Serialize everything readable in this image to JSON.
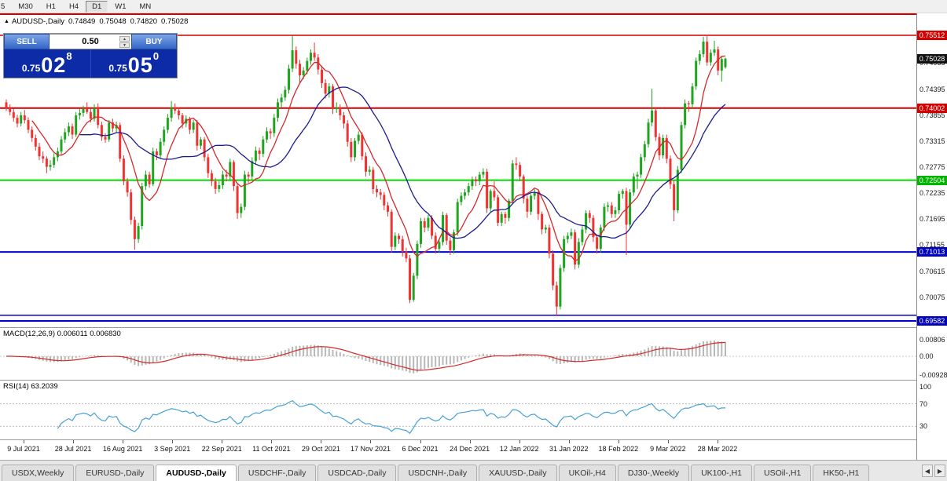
{
  "toolbar": {
    "timeframes": [
      {
        "label": "5",
        "active": false
      },
      {
        "label": "M30",
        "active": false
      },
      {
        "label": "H1",
        "active": false
      },
      {
        "label": "H4",
        "active": false
      },
      {
        "label": "D1",
        "active": true
      },
      {
        "label": "W1",
        "active": false
      },
      {
        "label": "MN",
        "active": false
      }
    ]
  },
  "chart_header": {
    "symbol": "AUDUSD-,Daily",
    "open": "0.74849",
    "high": "0.75048",
    "low": "0.74820",
    "close": "0.75028"
  },
  "trade_panel": {
    "sell_label": "SELL",
    "buy_label": "BUY",
    "volume": "0.50",
    "sell_price_small": "0.75",
    "sell_price_big": "02",
    "sell_price_sup": "8",
    "buy_price_small": "0.75",
    "buy_price_big": "05",
    "buy_price_sup": "0"
  },
  "chart_data": {
    "type": "candlestick",
    "symbol": "AUDUSD-,Daily",
    "up_color": "#1fa51f",
    "down_color": "#ef3434",
    "overlays": [
      {
        "name": "ma-fast",
        "period": 8,
        "color": "#d42a2a"
      },
      {
        "name": "ma-slow",
        "period": 21,
        "color": "#1c1c8f"
      }
    ],
    "hlines": [
      {
        "price": 0.75512,
        "color": "#d40000",
        "width": 1.5
      },
      {
        "price": 0.74002,
        "color": "#d40000",
        "width": 2
      },
      {
        "price": 0.72504,
        "color": "#00d800",
        "width": 2
      },
      {
        "price": 0.71013,
        "color": "#0000d0",
        "width": 2
      },
      {
        "price": 0.697,
        "color": "#0000d0",
        "width": 1.5
      },
      {
        "price": 0.69582,
        "color": "#0000d0",
        "width": 2
      }
    ],
    "price_axis": {
      "grid_labels": [
        "0.74935",
        "0.74395",
        "0.73855",
        "0.73315",
        "0.72775",
        "0.72235",
        "0.71695",
        "0.71155",
        "0.70615",
        "0.70075"
      ],
      "badges": [
        {
          "value": "0.75512",
          "color": "#d40000"
        },
        {
          "value": "0.75028",
          "color": "#111111"
        },
        {
          "value": "0.74002",
          "color": "#d40000"
        },
        {
          "value": "0.72504",
          "color": "#00b400"
        },
        {
          "value": "0.71013",
          "color": "#0000c0"
        },
        {
          "value": "0.69582",
          "color": "#0000c0"
        }
      ]
    },
    "date_labels": [
      "9 Jul 2021",
      "28 Jul 2021",
      "16 Aug 2021",
      "3 Sep 2021",
      "22 Sep 2021",
      "11 Oct 2021",
      "29 Oct 2021",
      "17 Nov 2021",
      "6 Dec 2021",
      "24 Dec 2021",
      "12 Jan 2022",
      "31 Jan 2022",
      "18 Feb 2022",
      "9 Mar 2022",
      "28 Mar 2022"
    ],
    "candles": [
      [
        0.7412,
        0.7418,
        0.7394,
        0.74
      ],
      [
        0.74,
        0.7408,
        0.7385,
        0.7392
      ],
      [
        0.7392,
        0.7399,
        0.7372,
        0.738
      ],
      [
        0.738,
        0.7386,
        0.736,
        0.7368
      ],
      [
        0.7368,
        0.7392,
        0.7362,
        0.7385
      ],
      [
        0.7385,
        0.7396,
        0.7368,
        0.7375
      ],
      [
        0.7375,
        0.7381,
        0.7348,
        0.7355
      ],
      [
        0.7355,
        0.7362,
        0.733,
        0.7338
      ],
      [
        0.7338,
        0.7345,
        0.7312,
        0.732
      ],
      [
        0.732,
        0.7328,
        0.7292,
        0.73
      ],
      [
        0.73,
        0.731,
        0.7286,
        0.7295
      ],
      [
        0.7295,
        0.73,
        0.7265,
        0.7278
      ],
      [
        0.7278,
        0.7292,
        0.727,
        0.7282
      ],
      [
        0.7282,
        0.7306,
        0.7276,
        0.7298
      ],
      [
        0.7298,
        0.7318,
        0.729,
        0.731
      ],
      [
        0.731,
        0.7342,
        0.7302,
        0.7335
      ],
      [
        0.7335,
        0.7358,
        0.7328,
        0.735
      ],
      [
        0.735,
        0.737,
        0.7342,
        0.7362
      ],
      [
        0.7362,
        0.7368,
        0.7336,
        0.7345
      ],
      [
        0.7345,
        0.7392,
        0.734,
        0.7385
      ],
      [
        0.7385,
        0.7398,
        0.7376,
        0.739
      ],
      [
        0.739,
        0.7405,
        0.7382,
        0.7398
      ],
      [
        0.7398,
        0.7412,
        0.7388,
        0.7392
      ],
      [
        0.7392,
        0.74,
        0.737,
        0.7378
      ],
      [
        0.7378,
        0.7408,
        0.7372,
        0.74
      ],
      [
        0.74,
        0.741,
        0.7358,
        0.7365
      ],
      [
        0.7365,
        0.7372,
        0.7332,
        0.734
      ],
      [
        0.734,
        0.7348,
        0.7328,
        0.7335
      ],
      [
        0.7335,
        0.7375,
        0.733,
        0.737
      ],
      [
        0.737,
        0.7378,
        0.735,
        0.7358
      ],
      [
        0.7358,
        0.7372,
        0.735,
        0.7365
      ],
      [
        0.7365,
        0.737,
        0.7288,
        0.7295
      ],
      [
        0.7295,
        0.7302,
        0.724,
        0.7248
      ],
      [
        0.7248,
        0.7255,
        0.7216,
        0.7225
      ],
      [
        0.7225,
        0.7232,
        0.7158,
        0.7168
      ],
      [
        0.7168,
        0.7175,
        0.7106,
        0.7128
      ],
      [
        0.7128,
        0.7162,
        0.712,
        0.7155
      ],
      [
        0.7155,
        0.7245,
        0.7148,
        0.7238
      ],
      [
        0.7238,
        0.727,
        0.723,
        0.7262
      ],
      [
        0.7262,
        0.7268,
        0.7235,
        0.7242
      ],
      [
        0.7242,
        0.7318,
        0.7238,
        0.731
      ],
      [
        0.731,
        0.7316,
        0.7292,
        0.7302
      ],
      [
        0.7302,
        0.7338,
        0.7296,
        0.733
      ],
      [
        0.733,
        0.7362,
        0.7322,
        0.7355
      ],
      [
        0.7355,
        0.7388,
        0.7348,
        0.738
      ],
      [
        0.738,
        0.7415,
        0.7372,
        0.7402
      ],
      [
        0.7402,
        0.741,
        0.7388,
        0.7395
      ],
      [
        0.7395,
        0.7402,
        0.7376,
        0.7385
      ],
      [
        0.7385,
        0.739,
        0.7358,
        0.7368
      ],
      [
        0.7368,
        0.7385,
        0.736,
        0.7378
      ],
      [
        0.7378,
        0.7382,
        0.7346,
        0.7355
      ],
      [
        0.7355,
        0.7376,
        0.7348,
        0.737
      ],
      [
        0.737,
        0.7375,
        0.7312,
        0.7322
      ],
      [
        0.7322,
        0.734,
        0.7315,
        0.7335
      ],
      [
        0.7335,
        0.734,
        0.729,
        0.7298
      ],
      [
        0.7298,
        0.7305,
        0.7255,
        0.7265
      ],
      [
        0.7265,
        0.7272,
        0.7238,
        0.7248
      ],
      [
        0.7248,
        0.7255,
        0.7222,
        0.7232
      ],
      [
        0.7232,
        0.7248,
        0.7225,
        0.724
      ],
      [
        0.724,
        0.727,
        0.7232,
        0.7262
      ],
      [
        0.7262,
        0.7272,
        0.7248,
        0.7258
      ],
      [
        0.7258,
        0.7295,
        0.725,
        0.7288
      ],
      [
        0.7288,
        0.7292,
        0.7228,
        0.7238
      ],
      [
        0.7238,
        0.7245,
        0.717,
        0.7182
      ],
      [
        0.7182,
        0.7202,
        0.7172,
        0.7195
      ],
      [
        0.7195,
        0.727,
        0.7188,
        0.7262
      ],
      [
        0.7262,
        0.7268,
        0.7245,
        0.7258
      ],
      [
        0.7258,
        0.7298,
        0.725,
        0.729
      ],
      [
        0.729,
        0.732,
        0.7282,
        0.7312
      ],
      [
        0.7312,
        0.7318,
        0.7292,
        0.7305
      ],
      [
        0.7305,
        0.7342,
        0.7298,
        0.7335
      ],
      [
        0.7335,
        0.736,
        0.7328,
        0.7352
      ],
      [
        0.7352,
        0.7358,
        0.7336,
        0.7348
      ],
      [
        0.7348,
        0.7388,
        0.734,
        0.738
      ],
      [
        0.738,
        0.742,
        0.7372,
        0.7412
      ],
      [
        0.7412,
        0.743,
        0.7402,
        0.7422
      ],
      [
        0.7422,
        0.7446,
        0.7415,
        0.7438
      ],
      [
        0.7438,
        0.749,
        0.743,
        0.7482
      ],
      [
        0.7482,
        0.755,
        0.7475,
        0.752
      ],
      [
        0.752,
        0.7528,
        0.7482,
        0.7492
      ],
      [
        0.7492,
        0.75,
        0.7452,
        0.7468
      ],
      [
        0.7468,
        0.7485,
        0.746,
        0.7478
      ],
      [
        0.7478,
        0.7505,
        0.747,
        0.7498
      ],
      [
        0.7498,
        0.7522,
        0.749,
        0.7515
      ],
      [
        0.7515,
        0.7536,
        0.7498,
        0.7505
      ],
      [
        0.7505,
        0.7512,
        0.747,
        0.748
      ],
      [
        0.748,
        0.7488,
        0.7442,
        0.7452
      ],
      [
        0.7452,
        0.746,
        0.742,
        0.743
      ],
      [
        0.743,
        0.7452,
        0.7422,
        0.7445
      ],
      [
        0.7445,
        0.745,
        0.7388,
        0.7398
      ],
      [
        0.7398,
        0.7412,
        0.739,
        0.7402
      ],
      [
        0.7402,
        0.7408,
        0.7375,
        0.7385
      ],
      [
        0.7385,
        0.7392,
        0.7358,
        0.7368
      ],
      [
        0.7368,
        0.7375,
        0.732,
        0.733
      ],
      [
        0.733,
        0.7338,
        0.7288,
        0.7298
      ],
      [
        0.7298,
        0.7338,
        0.729,
        0.7332
      ],
      [
        0.7332,
        0.7352,
        0.7325,
        0.7345
      ],
      [
        0.7345,
        0.735,
        0.7292,
        0.73
      ],
      [
        0.73,
        0.7308,
        0.7258,
        0.7268
      ],
      [
        0.7268,
        0.728,
        0.726,
        0.7272
      ],
      [
        0.7272,
        0.7278,
        0.7222,
        0.7232
      ],
      [
        0.7232,
        0.724,
        0.7215,
        0.7225
      ],
      [
        0.7225,
        0.7232,
        0.721,
        0.722
      ],
      [
        0.722,
        0.7226,
        0.7188,
        0.7198
      ],
      [
        0.7198,
        0.7205,
        0.7175,
        0.7185
      ],
      [
        0.7185,
        0.719,
        0.71,
        0.7112
      ],
      [
        0.7112,
        0.7142,
        0.7105,
        0.7135
      ],
      [
        0.7135,
        0.714,
        0.7118,
        0.7128
      ],
      [
        0.7128,
        0.7135,
        0.7092,
        0.7102
      ],
      [
        0.7102,
        0.711,
        0.708,
        0.7088
      ],
      [
        0.7088,
        0.7095,
        0.6995,
        0.7002
      ],
      [
        0.7002,
        0.7058,
        0.6998,
        0.7052
      ],
      [
        0.7052,
        0.7125,
        0.7045,
        0.7118
      ],
      [
        0.7118,
        0.7172,
        0.711,
        0.7165
      ],
      [
        0.7165,
        0.7172,
        0.7142,
        0.7152
      ],
      [
        0.7152,
        0.7178,
        0.7145,
        0.7172
      ],
      [
        0.7172,
        0.7178,
        0.7128,
        0.7135
      ],
      [
        0.7135,
        0.7142,
        0.7098,
        0.7108
      ],
      [
        0.7108,
        0.7128,
        0.71,
        0.7122
      ],
      [
        0.7122,
        0.7185,
        0.7115,
        0.7178
      ],
      [
        0.7178,
        0.7182,
        0.7116,
        0.7125
      ],
      [
        0.7125,
        0.7132,
        0.7095,
        0.7105
      ],
      [
        0.7105,
        0.7148,
        0.7098,
        0.7142
      ],
      [
        0.7142,
        0.7212,
        0.7135,
        0.7205
      ],
      [
        0.7205,
        0.7225,
        0.7198,
        0.7218
      ],
      [
        0.7218,
        0.7232,
        0.721,
        0.7225
      ],
      [
        0.7225,
        0.7245,
        0.7218,
        0.7238
      ],
      [
        0.7238,
        0.7258,
        0.723,
        0.7252
      ],
      [
        0.7252,
        0.7258,
        0.7238,
        0.7248
      ],
      [
        0.7248,
        0.7268,
        0.724,
        0.7262
      ],
      [
        0.7262,
        0.7275,
        0.7255,
        0.7268
      ],
      [
        0.7268,
        0.7274,
        0.7182,
        0.7192
      ],
      [
        0.7192,
        0.7232,
        0.7185,
        0.7228
      ],
      [
        0.7228,
        0.7248,
        0.7208,
        0.7215
      ],
      [
        0.7215,
        0.722,
        0.7155,
        0.7162
      ],
      [
        0.7162,
        0.7185,
        0.7155,
        0.718
      ],
      [
        0.718,
        0.7185,
        0.716,
        0.7172
      ],
      [
        0.7172,
        0.7212,
        0.7165,
        0.7208
      ],
      [
        0.7208,
        0.7292,
        0.72,
        0.7285
      ],
      [
        0.7285,
        0.7298,
        0.7272,
        0.7282
      ],
      [
        0.7282,
        0.7288,
        0.7248,
        0.7258
      ],
      [
        0.7258,
        0.7262,
        0.7202,
        0.7212
      ],
      [
        0.7212,
        0.7218,
        0.7172,
        0.7185
      ],
      [
        0.7185,
        0.7222,
        0.7178,
        0.7218
      ],
      [
        0.7218,
        0.7232,
        0.721,
        0.7225
      ],
      [
        0.7225,
        0.723,
        0.7168,
        0.718
      ],
      [
        0.718,
        0.7185,
        0.7138,
        0.7148
      ],
      [
        0.7148,
        0.7158,
        0.714,
        0.7152
      ],
      [
        0.7152,
        0.7158,
        0.7088,
        0.7098
      ],
      [
        0.7098,
        0.7105,
        0.7022,
        0.7032
      ],
      [
        0.7032,
        0.704,
        0.6968,
        0.6988
      ],
      [
        0.6988,
        0.7075,
        0.6982,
        0.7068
      ],
      [
        0.7068,
        0.7135,
        0.706,
        0.7128
      ],
      [
        0.7128,
        0.7142,
        0.712,
        0.7135
      ],
      [
        0.7135,
        0.715,
        0.7128,
        0.7142
      ],
      [
        0.7142,
        0.7148,
        0.7065,
        0.7075
      ],
      [
        0.7075,
        0.713,
        0.7068,
        0.7122
      ],
      [
        0.7122,
        0.7155,
        0.7115,
        0.7148
      ],
      [
        0.7148,
        0.7188,
        0.714,
        0.7182
      ],
      [
        0.7182,
        0.7188,
        0.7162,
        0.7172
      ],
      [
        0.7172,
        0.7178,
        0.7122,
        0.7132
      ],
      [
        0.7132,
        0.7138,
        0.7098,
        0.7108
      ],
      [
        0.7108,
        0.7158,
        0.71,
        0.7152
      ],
      [
        0.7152,
        0.7202,
        0.7145,
        0.7195
      ],
      [
        0.7195,
        0.7205,
        0.7185,
        0.7198
      ],
      [
        0.7198,
        0.7205,
        0.7172,
        0.718
      ],
      [
        0.718,
        0.7195,
        0.7172,
        0.7188
      ],
      [
        0.7188,
        0.7228,
        0.718,
        0.7222
      ],
      [
        0.7222,
        0.7232,
        0.7212,
        0.7228
      ],
      [
        0.7228,
        0.7235,
        0.7095,
        0.7158
      ],
      [
        0.7158,
        0.7232,
        0.715,
        0.7225
      ],
      [
        0.7225,
        0.7265,
        0.7218,
        0.7258
      ],
      [
        0.7258,
        0.7268,
        0.7232,
        0.7262
      ],
      [
        0.7262,
        0.7305,
        0.7255,
        0.7298
      ],
      [
        0.7298,
        0.7332,
        0.729,
        0.7325
      ],
      [
        0.7325,
        0.7378,
        0.7318,
        0.737
      ],
      [
        0.737,
        0.744,
        0.7362,
        0.7395
      ],
      [
        0.7395,
        0.7402,
        0.7332,
        0.734
      ],
      [
        0.734,
        0.7348,
        0.7292,
        0.7302
      ],
      [
        0.7302,
        0.7345,
        0.7295,
        0.7338
      ],
      [
        0.7338,
        0.7345,
        0.7285,
        0.7295
      ],
      [
        0.7295,
        0.7302,
        0.7232,
        0.7242
      ],
      [
        0.7242,
        0.725,
        0.7165,
        0.7188
      ],
      [
        0.7188,
        0.728,
        0.7182,
        0.7272
      ],
      [
        0.7272,
        0.7372,
        0.7265,
        0.7365
      ],
      [
        0.7365,
        0.7418,
        0.7358,
        0.741
      ],
      [
        0.741,
        0.7415,
        0.7392,
        0.7408
      ],
      [
        0.7408,
        0.7452,
        0.74,
        0.7445
      ],
      [
        0.7445,
        0.7505,
        0.7438,
        0.7498
      ],
      [
        0.7498,
        0.752,
        0.749,
        0.7512
      ],
      [
        0.7512,
        0.7548,
        0.7505,
        0.7538
      ],
      [
        0.7538,
        0.7552,
        0.7488,
        0.7495
      ],
      [
        0.7495,
        0.7522,
        0.7488,
        0.7515
      ],
      [
        0.7515,
        0.754,
        0.7508,
        0.7522
      ],
      [
        0.7522,
        0.7528,
        0.7468,
        0.7478
      ],
      [
        0.7478,
        0.7508,
        0.7455,
        0.7502
      ],
      [
        0.74849,
        0.75048,
        0.7482,
        0.75028
      ]
    ]
  },
  "macd": {
    "label": "MACD(12,26,9) 0.006011 0.006830",
    "params": [
      12,
      26,
      9
    ],
    "axis_labels": [
      "0.00806",
      "0.00",
      "-0.00928"
    ],
    "hist_color": "#b8b8b8",
    "signal_color": "#d42a2a"
  },
  "rsi": {
    "label": "RSI(14) 63.2039",
    "period": 14,
    "levels": [
      100,
      70,
      30
    ],
    "line_color": "#47a1d8"
  },
  "tabs": [
    {
      "label": "USDX,Weekly",
      "active": false
    },
    {
      "label": "EURUSD-,Daily",
      "active": false
    },
    {
      "label": "AUDUSD-,Daily",
      "active": true
    },
    {
      "label": "USDCHF-,Daily",
      "active": false
    },
    {
      "label": "USDCAD-,Daily",
      "active": false
    },
    {
      "label": "USDCNH-,Daily",
      "active": false
    },
    {
      "label": "XAUUSD-,Daily",
      "active": false
    },
    {
      "label": "UKOil-,H4",
      "active": false
    },
    {
      "label": "DJ30-,Weekly",
      "active": false
    },
    {
      "label": "UK100-,H1",
      "active": false
    },
    {
      "label": "USOil-,H1",
      "active": false
    },
    {
      "label": "HK50-,H1",
      "active": false
    }
  ],
  "tab_nav": {
    "left": "◀",
    "right": "▶"
  }
}
